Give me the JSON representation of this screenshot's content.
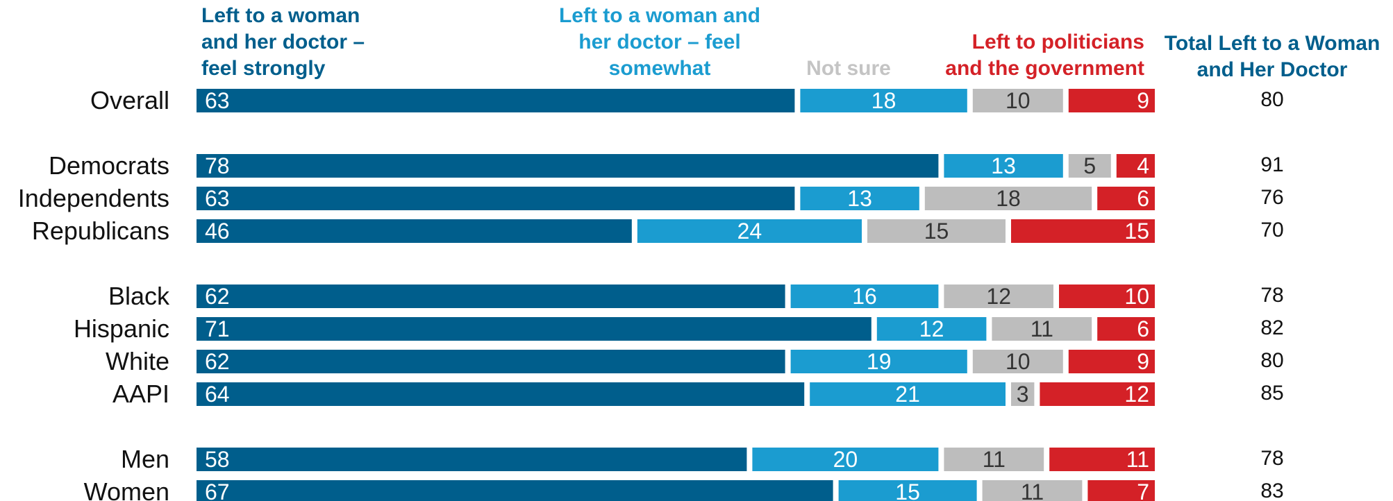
{
  "chart_data": {
    "type": "bar",
    "orientation": "horizontal",
    "stacked": true,
    "legend_placement": "top",
    "grid": false,
    "xlim": [
      0,
      100
    ],
    "series": [
      {
        "name": "Left to a woman and her doctor – feel strongly",
        "legend_lines": [
          "Left to a woman",
          "and her doctor –",
          "feel strongly"
        ],
        "color": "#005E8C",
        "label_color": "#ffffff"
      },
      {
        "name": "Left to a woman and her doctor – feel somewhat",
        "legend_lines": [
          "Left to a woman and",
          "her doctor – feel",
          "somewhat"
        ],
        "color": "#1B9CD0",
        "label_color": "#ffffff"
      },
      {
        "name": "Not sure",
        "legend_lines": [
          "Not sure"
        ],
        "color": "#BDBDBD",
        "legend_color": "#C4C4C4",
        "label_color": "#333333"
      },
      {
        "name": "Left to politicians and the government",
        "legend_lines": [
          "Left to politicians",
          "and the government"
        ],
        "color": "#D42127",
        "label_color": "#ffffff"
      }
    ],
    "total_column": {
      "header_lines": [
        "Total Left to a Woman",
        "and Her Doctor"
      ],
      "color": "#005E8C"
    },
    "groups": [
      {
        "rows": [
          {
            "label": "Overall",
            "values": [
              63,
              18,
              10,
              9
            ],
            "total": 80
          }
        ]
      },
      {
        "rows": [
          {
            "label": "Democrats",
            "values": [
              78,
              13,
              5,
              4
            ],
            "total": 91
          },
          {
            "label": "Independents",
            "values": [
              63,
              13,
              18,
              6
            ],
            "total": 76
          },
          {
            "label": "Republicans",
            "values": [
              46,
              24,
              15,
              15
            ],
            "total": 70
          }
        ]
      },
      {
        "rows": [
          {
            "label": "Black",
            "values": [
              62,
              16,
              12,
              10
            ],
            "total": 78
          },
          {
            "label": "Hispanic",
            "values": [
              71,
              12,
              11,
              6
            ],
            "total": 82
          },
          {
            "label": "White",
            "values": [
              62,
              19,
              10,
              9
            ],
            "total": 80
          },
          {
            "label": "AAPI",
            "values": [
              64,
              21,
              3,
              12
            ],
            "total": 85
          }
        ]
      },
      {
        "rows": [
          {
            "label": "Men",
            "values": [
              58,
              20,
              11,
              11
            ],
            "total": 78
          },
          {
            "label": "Women",
            "values": [
              67,
              15,
              11,
              7
            ],
            "total": 83
          }
        ]
      }
    ]
  }
}
